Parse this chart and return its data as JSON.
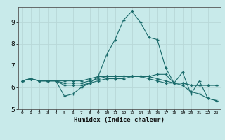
{
  "xlabel": "Humidex (Indice chaleur)",
  "ylabel": "",
  "background_color": "#c8eaea",
  "grid_color": "#b8d8d8",
  "line_color": "#1a6b6b",
  "xlim": [
    -0.5,
    23.5
  ],
  "ylim": [
    5.0,
    9.7
  ],
  "yticks": [
    5,
    6,
    7,
    8,
    9
  ],
  "xticks": [
    0,
    1,
    2,
    3,
    4,
    5,
    6,
    7,
    8,
    9,
    10,
    11,
    12,
    13,
    14,
    15,
    16,
    17,
    18,
    19,
    20,
    21,
    22,
    23
  ],
  "series": [
    {
      "x": [
        0,
        1,
        2,
        3,
        4,
        5,
        6,
        7,
        8,
        9,
        10,
        11,
        12,
        13,
        14,
        15,
        16,
        17,
        18,
        19,
        20,
        21,
        22,
        23
      ],
      "y": [
        6.3,
        6.4,
        6.3,
        6.3,
        6.3,
        5.6,
        5.7,
        6.0,
        6.2,
        6.5,
        7.5,
        8.2,
        9.1,
        9.5,
        9.0,
        8.3,
        8.2,
        6.9,
        6.2,
        6.7,
        5.7,
        6.3,
        5.5,
        5.4
      ]
    },
    {
      "x": [
        0,
        1,
        2,
        3,
        4,
        5,
        6,
        7,
        8,
        9,
        10,
        11,
        12,
        13,
        14,
        15,
        16,
        17,
        18,
        19,
        20,
        21,
        22,
        23
      ],
      "y": [
        6.3,
        6.4,
        6.3,
        6.3,
        6.3,
        6.3,
        6.3,
        6.3,
        6.4,
        6.5,
        6.5,
        6.5,
        6.5,
        6.5,
        6.5,
        6.5,
        6.6,
        6.6,
        6.2,
        6.2,
        6.1,
        6.1,
        6.1,
        6.1
      ]
    },
    {
      "x": [
        0,
        1,
        2,
        3,
        4,
        5,
        6,
        7,
        8,
        9,
        10,
        11,
        12,
        13,
        14,
        15,
        16,
        17,
        18,
        19,
        20,
        21,
        22,
        23
      ],
      "y": [
        6.3,
        6.4,
        6.3,
        6.3,
        6.3,
        6.1,
        6.1,
        6.1,
        6.2,
        6.3,
        6.4,
        6.4,
        6.4,
        6.5,
        6.5,
        6.4,
        6.3,
        6.2,
        6.2,
        6.1,
        5.8,
        5.7,
        5.5,
        5.4
      ]
    },
    {
      "x": [
        0,
        1,
        2,
        3,
        4,
        5,
        6,
        7,
        8,
        9,
        10,
        11,
        12,
        13,
        14,
        15,
        16,
        17,
        18,
        19,
        20,
        21,
        22,
        23
      ],
      "y": [
        6.3,
        6.4,
        6.3,
        6.3,
        6.3,
        6.2,
        6.2,
        6.2,
        6.3,
        6.4,
        6.5,
        6.5,
        6.5,
        6.5,
        6.5,
        6.5,
        6.4,
        6.3,
        6.2,
        6.2,
        6.1,
        6.1,
        6.1,
        6.1
      ]
    }
  ]
}
